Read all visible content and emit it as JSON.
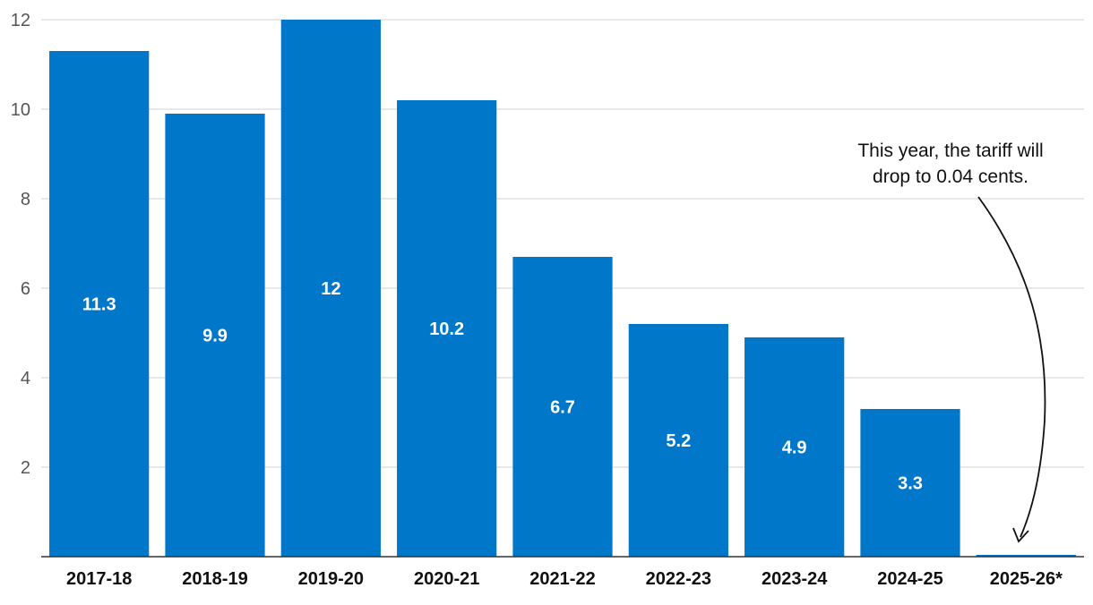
{
  "chart_data": {
    "type": "bar",
    "categories": [
      "2017-18",
      "2018-19",
      "2019-20",
      "2020-21",
      "2021-22",
      "2022-23",
      "2023-24",
      "2024-25",
      "2025-26*"
    ],
    "values": [
      11.3,
      9.9,
      12,
      10.2,
      6.7,
      5.2,
      4.9,
      3.3,
      0.04
    ],
    "data_labels": [
      "11.3",
      "9.9",
      "12",
      "10.2",
      "6.7",
      "5.2",
      "4.9",
      "3.3",
      ""
    ],
    "yticks": [
      2,
      4,
      6,
      8,
      10,
      12
    ],
    "ylim": [
      0,
      12
    ],
    "grid": true,
    "bar_color": "#0077c8",
    "grid_color": "#d9d9d9",
    "annotation": {
      "lines": [
        "This year, the tariff will",
        "drop to 0.04 cents."
      ],
      "target_category": "2025-26*"
    }
  }
}
